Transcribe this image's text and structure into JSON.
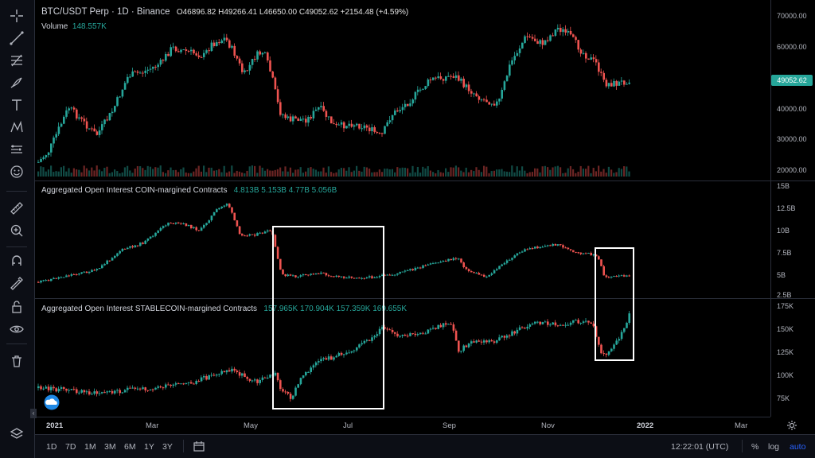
{
  "header": {
    "symbol": "BTC/USDT Perp · 1D · Binance",
    "open": "O46896.82",
    "high": "H49266.41",
    "low": "L46650.00",
    "close": "C49052.62",
    "change": "+2154.48 (+4.59%)"
  },
  "volume": {
    "label": "Volume",
    "value": "148.557K"
  },
  "indicators": [
    {
      "label": "Aggregated Open Interest COIN-margined Contracts",
      "values": "4.813B  5.153B  4.77B  5.056B"
    },
    {
      "label": "Aggregated Open Interest STABLECOIN-margined Contracts",
      "values": "157.965K  170.904K  157.359K  169.655K"
    }
  ],
  "price_scale": [
    "70000.00",
    "60000.00",
    "40000.00",
    "30000.00",
    "20000.00"
  ],
  "last_price": "49052.62",
  "oi_coin_scale": [
    "15B",
    "12.5B",
    "10B",
    "7.5B",
    "5B",
    "2.5B"
  ],
  "oi_stable_scale": [
    "175K",
    "150K",
    "125K",
    "100K",
    "75K"
  ],
  "time_axis": [
    "2021",
    "Mar",
    "May",
    "Jul",
    "Sep",
    "Nov",
    "2022",
    "Mar"
  ],
  "ranges": [
    "1D",
    "7D",
    "1M",
    "3M",
    "6M",
    "1Y",
    "3Y"
  ],
  "clock": "12:22:01 (UTC)",
  "bottom_options": {
    "percent": "%",
    "log": "log",
    "auto": "auto"
  },
  "colors": {
    "up": "#26a69a",
    "down": "#ef5350",
    "accent": "#2962ff",
    "box": "#ffffff"
  },
  "icons": [
    "crosshair-icon",
    "trend-line-icon",
    "fib-icon",
    "brush-icon",
    "text-icon",
    "pattern-icon",
    "prediction-icon",
    "emoji-icon",
    "ruler-icon",
    "zoom-icon",
    "magnet-icon",
    "lock-drawings-icon",
    "lock-icon",
    "eye-icon",
    "trash-icon",
    "layers-icon"
  ]
}
